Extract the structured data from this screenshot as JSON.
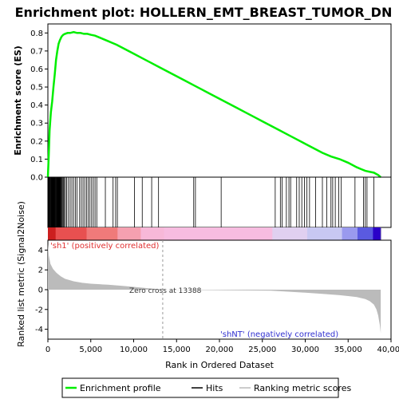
{
  "chart_data": {
    "type": "line",
    "title": "Enrichment plot: HOLLERN_EMT_BREAST_TUMOR_DN",
    "xlabel": "Rank in Ordered Dataset",
    "ylabel_es": "Enrichment score (ES)",
    "ylabel_metric": "Ranked list metric (Signal2Noise)",
    "x_range": [
      0,
      40000
    ],
    "x_ticks": [
      "0",
      "5,000",
      "10,000",
      "15,000",
      "20,000",
      "25,000",
      "30,000",
      "35,000",
      "40,000"
    ],
    "x_tick_values": [
      0,
      5000,
      10000,
      15000,
      20000,
      25000,
      30000,
      35000,
      40000
    ],
    "es_ylim": [
      0,
      0.85
    ],
    "es_ticks": [
      "0.0",
      "0.1",
      "0.2",
      "0.3",
      "0.4",
      "0.5",
      "0.6",
      "0.7",
      "0.8"
    ],
    "es_tick_values": [
      0,
      0.1,
      0.2,
      0.3,
      0.4,
      0.5,
      0.6,
      0.7,
      0.8
    ],
    "metric_ylim": [
      -5,
      5
    ],
    "metric_ticks": [
      "4",
      "2",
      "0",
      "-2",
      "-4"
    ],
    "metric_tick_values": [
      4,
      2,
      0,
      -2,
      -4
    ],
    "dataset_size": 38800,
    "zero_cross_rank": 13388,
    "zero_cross_label": "Zero cross at 13388",
    "pos_label": "'sh1' (positively correlated)",
    "neg_label": "'shNT' (negatively correlated)",
    "series": [
      {
        "name": "Enrichment profile",
        "color": "#00ee00",
        "x": [
          0,
          100,
          200,
          350,
          500,
          650,
          800,
          950,
          1100,
          1250,
          1400,
          1600,
          1800,
          2000,
          2300,
          2600,
          3000,
          3400,
          3800,
          4200,
          4600,
          5000,
          5500,
          6000,
          6500,
          7000,
          7500,
          8000,
          9000,
          10000,
          11000,
          12000,
          13000,
          14000,
          15000,
          16000,
          17000,
          18000,
          19000,
          20000,
          21000,
          22000,
          23000,
          24000,
          25000,
          26000,
          27000,
          28000,
          29000,
          30000,
          31000,
          32000,
          33000,
          34000,
          35000,
          36000,
          36500,
          37000,
          37500,
          38000,
          38500,
          38800
        ],
        "values": [
          0.0,
          0.12,
          0.26,
          0.36,
          0.42,
          0.5,
          0.57,
          0.65,
          0.7,
          0.74,
          0.76,
          0.78,
          0.79,
          0.795,
          0.8,
          0.8,
          0.805,
          0.8,
          0.8,
          0.795,
          0.795,
          0.79,
          0.785,
          0.775,
          0.765,
          0.755,
          0.745,
          0.735,
          0.71,
          0.685,
          0.66,
          0.635,
          0.61,
          0.585,
          0.56,
          0.535,
          0.51,
          0.485,
          0.46,
          0.435,
          0.41,
          0.385,
          0.36,
          0.335,
          0.31,
          0.285,
          0.26,
          0.235,
          0.21,
          0.185,
          0.16,
          0.135,
          0.115,
          0.1,
          0.08,
          0.055,
          0.045,
          0.035,
          0.03,
          0.025,
          0.012,
          0.0
        ]
      },
      {
        "name": "Hits",
        "color": "#000000",
        "x": [
          30,
          80,
          130,
          180,
          230,
          280,
          330,
          380,
          430,
          480,
          530,
          580,
          630,
          680,
          730,
          780,
          830,
          880,
          930,
          980,
          1030,
          1080,
          1130,
          1180,
          1230,
          1280,
          1330,
          1380,
          1430,
          1480,
          1550,
          1620,
          1700,
          1800,
          1900,
          2050,
          2200,
          2400,
          2600,
          2800,
          3000,
          3200,
          3400,
          3700,
          3900,
          4100,
          4300,
          4500,
          4700,
          4900,
          5100,
          5300,
          5500,
          5700,
          6700,
          7600,
          7900,
          8100,
          10100,
          11000,
          12100,
          12900,
          17000,
          17200,
          20200,
          26500,
          27100,
          27300,
          27800,
          28100,
          28300,
          29000,
          29300,
          29600,
          29900,
          30200,
          30500,
          31200,
          32000,
          32500,
          33000,
          33200,
          33500,
          33900,
          34200,
          35800,
          36800,
          37000,
          37200,
          38000
        ]
      },
      {
        "name": "Ranking metric scores",
        "color": "#bbbbbb",
        "x": [
          0,
          100,
          300,
          600,
          1000,
          1500,
          2000,
          3000,
          4000,
          5000,
          6000,
          7000,
          8000,
          9000,
          10000,
          11000,
          12000,
          13000,
          13388,
          26000,
          28000,
          30000,
          32000,
          34000,
          35000,
          36000,
          37000,
          37500,
          38000,
          38300,
          38500,
          38700,
          38800
        ],
        "values": [
          4.6,
          3.5,
          2.6,
          2.1,
          1.7,
          1.35,
          1.1,
          0.85,
          0.7,
          0.6,
          0.55,
          0.5,
          0.43,
          0.36,
          0.28,
          0.2,
          0.12,
          0.04,
          0.0,
          -0.1,
          -0.2,
          -0.3,
          -0.42,
          -0.55,
          -0.65,
          -0.75,
          -0.95,
          -1.15,
          -1.5,
          -2.0,
          -2.6,
          -3.6,
          -4.4
        ]
      }
    ],
    "legend": {
      "placement": "bottom",
      "entries": [
        "Enrichment profile",
        "Hits",
        "Ranking metric scores"
      ]
    }
  }
}
